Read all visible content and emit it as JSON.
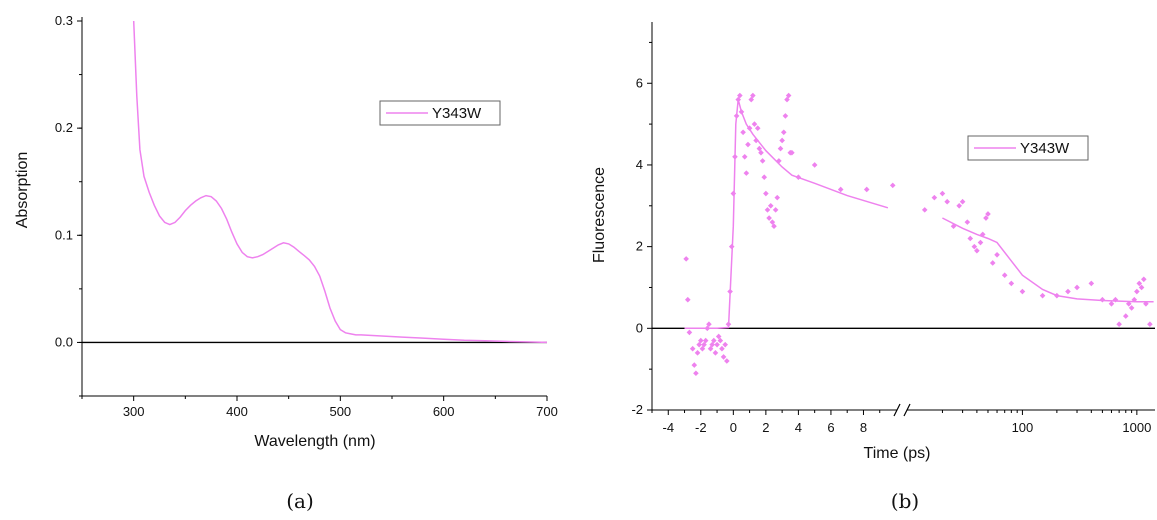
{
  "colors": {
    "series": "#ee82ee",
    "axis": "#000000",
    "zero_line": "#000000"
  },
  "chart_data": [
    {
      "id": "a",
      "type": "line",
      "caption": "(a)",
      "xlabel": "Wavelength (nm)",
      "ylabel": "Absorption",
      "xlim": [
        250,
        700
      ],
      "ylim": [
        -0.05,
        0.3
      ],
      "xticks": [
        300,
        400,
        500,
        600,
        700
      ],
      "yticks": [
        0.0,
        0.1,
        0.2,
        0.3
      ],
      "ytick_labels": [
        "0.0",
        "0.1",
        "0.2",
        "0.3"
      ],
      "zero_line": 0,
      "legend": {
        "label": "Y343W",
        "placement": "top-right"
      },
      "series": [
        {
          "name": "Y343W",
          "x": [
            300,
            303,
            306,
            310,
            315,
            320,
            325,
            330,
            335,
            340,
            345,
            350,
            355,
            360,
            365,
            370,
            375,
            380,
            385,
            390,
            395,
            400,
            405,
            410,
            415,
            420,
            425,
            430,
            435,
            440,
            445,
            450,
            455,
            460,
            465,
            470,
            475,
            480,
            485,
            490,
            495,
            500,
            505,
            510,
            515,
            520,
            540,
            560,
            580,
            600,
            620,
            640,
            660,
            680,
            700
          ],
          "y": [
            0.3,
            0.23,
            0.18,
            0.155,
            0.14,
            0.128,
            0.118,
            0.112,
            0.11,
            0.112,
            0.117,
            0.123,
            0.128,
            0.132,
            0.135,
            0.137,
            0.136,
            0.132,
            0.125,
            0.115,
            0.103,
            0.092,
            0.084,
            0.08,
            0.079,
            0.08,
            0.082,
            0.085,
            0.088,
            0.091,
            0.093,
            0.092,
            0.089,
            0.085,
            0.081,
            0.077,
            0.071,
            0.062,
            0.048,
            0.032,
            0.02,
            0.012,
            0.009,
            0.008,
            0.007,
            0.007,
            0.006,
            0.005,
            0.004,
            0.003,
            0.002,
            0.0015,
            0.001,
            0.0005,
            0.0
          ]
        }
      ]
    },
    {
      "id": "b",
      "type": "scatter",
      "caption": "(b)",
      "xlabel": "Time (ps)",
      "ylabel": "Fluorescence",
      "x_scale": "broken: linear -5 to 10 ps, then log 10 to 1500 ps",
      "xlim_linear": [
        -5,
        10
      ],
      "xlim_log": [
        10,
        1500
      ],
      "ylim": [
        -2,
        7.5
      ],
      "xticks_linear": [
        -4,
        -2,
        0,
        2,
        4,
        6,
        8
      ],
      "xticks_log": [
        100,
        1000
      ],
      "yticks": [
        -2,
        0,
        2,
        4,
        6
      ],
      "zero_line": 0,
      "legend": {
        "label": "Y343W",
        "placement": "right"
      },
      "fit": {
        "name": "Y343W",
        "x": [
          -3,
          -2,
          -1,
          -0.3,
          0,
          0.15,
          0.3,
          0.5,
          0.8,
          1.2,
          2,
          3,
          3.6,
          5,
          7,
          9.5,
          20,
          30,
          40,
          50,
          60,
          80,
          100,
          150,
          200,
          300,
          500,
          800,
          1000,
          1200,
          1400
        ],
        "y": [
          0,
          0,
          0,
          0.02,
          2.5,
          5.0,
          5.6,
          5.3,
          5.0,
          4.75,
          4.35,
          3.95,
          3.75,
          3.55,
          3.25,
          2.95,
          2.7,
          2.45,
          2.3,
          2.2,
          2.1,
          1.65,
          1.3,
          0.95,
          0.8,
          0.72,
          0.68,
          0.66,
          0.65,
          0.65,
          0.65
        ]
      },
      "points": {
        "x": [
          -2.9,
          -2.8,
          -2.7,
          -2.5,
          -2.4,
          -2.3,
          -2.2,
          -2.1,
          -2.0,
          -1.9,
          -1.8,
          -1.7,
          -1.6,
          -1.5,
          -1.4,
          -1.3,
          -1.2,
          -1.1,
          -1.0,
          -0.9,
          -0.8,
          -0.7,
          -0.6,
          -0.5,
          -0.4,
          -0.3,
          -0.2,
          -0.1,
          0.0,
          0.1,
          0.2,
          0.3,
          0.4,
          0.5,
          0.6,
          0.7,
          0.8,
          0.9,
          1.0,
          1.1,
          1.2,
          1.3,
          1.4,
          1.5,
          1.6,
          1.7,
          1.8,
          1.9,
          2.0,
          2.1,
          2.2,
          2.3,
          2.4,
          2.5,
          2.6,
          2.7,
          2.8,
          2.9,
          3.0,
          3.1,
          3.2,
          3.3,
          3.4,
          3.5,
          3.6,
          4.0,
          5.0,
          6.6,
          8.2,
          9.8,
          14,
          17,
          20,
          22,
          25,
          28,
          30,
          33,
          35,
          38,
          40,
          43,
          45,
          48,
          50,
          55,
          60,
          70,
          80,
          100,
          150,
          200,
          250,
          300,
          400,
          500,
          600,
          650,
          700,
          800,
          850,
          900,
          950,
          1000,
          1050,
          1100,
          1150,
          1200,
          1300
        ],
        "y": [
          1.7,
          0.7,
          -0.1,
          -0.5,
          -0.9,
          -1.1,
          -0.6,
          -0.4,
          -0.3,
          -0.5,
          -0.4,
          -0.3,
          0.0,
          0.1,
          -0.5,
          -0.4,
          -0.3,
          -0.6,
          -0.4,
          -0.2,
          -0.3,
          -0.5,
          -0.7,
          -0.4,
          -0.8,
          0.1,
          0.9,
          2.0,
          3.3,
          4.2,
          5.2,
          5.6,
          5.7,
          5.3,
          4.8,
          4.2,
          3.8,
          4.5,
          4.9,
          5.6,
          5.7,
          5.0,
          4.6,
          4.9,
          4.4,
          4.3,
          4.1,
          3.7,
          3.3,
          2.9,
          2.7,
          3.0,
          2.6,
          2.5,
          2.9,
          3.2,
          4.1,
          4.4,
          4.6,
          4.8,
          5.2,
          5.6,
          5.7,
          4.3,
          4.3,
          3.7,
          4.0,
          3.4,
          3.4,
          3.5,
          2.9,
          3.2,
          3.3,
          3.1,
          2.5,
          3.0,
          3.1,
          2.6,
          2.2,
          2.0,
          1.9,
          2.1,
          2.3,
          2.7,
          2.8,
          1.6,
          1.8,
          1.3,
          1.1,
          0.9,
          0.8,
          0.8,
          0.9,
          1.0,
          1.1,
          0.7,
          0.6,
          0.7,
          0.1,
          0.3,
          0.6,
          0.5,
          0.7,
          0.9,
          1.1,
          1.0,
          1.2,
          0.6,
          0.1
        ]
      }
    }
  ]
}
